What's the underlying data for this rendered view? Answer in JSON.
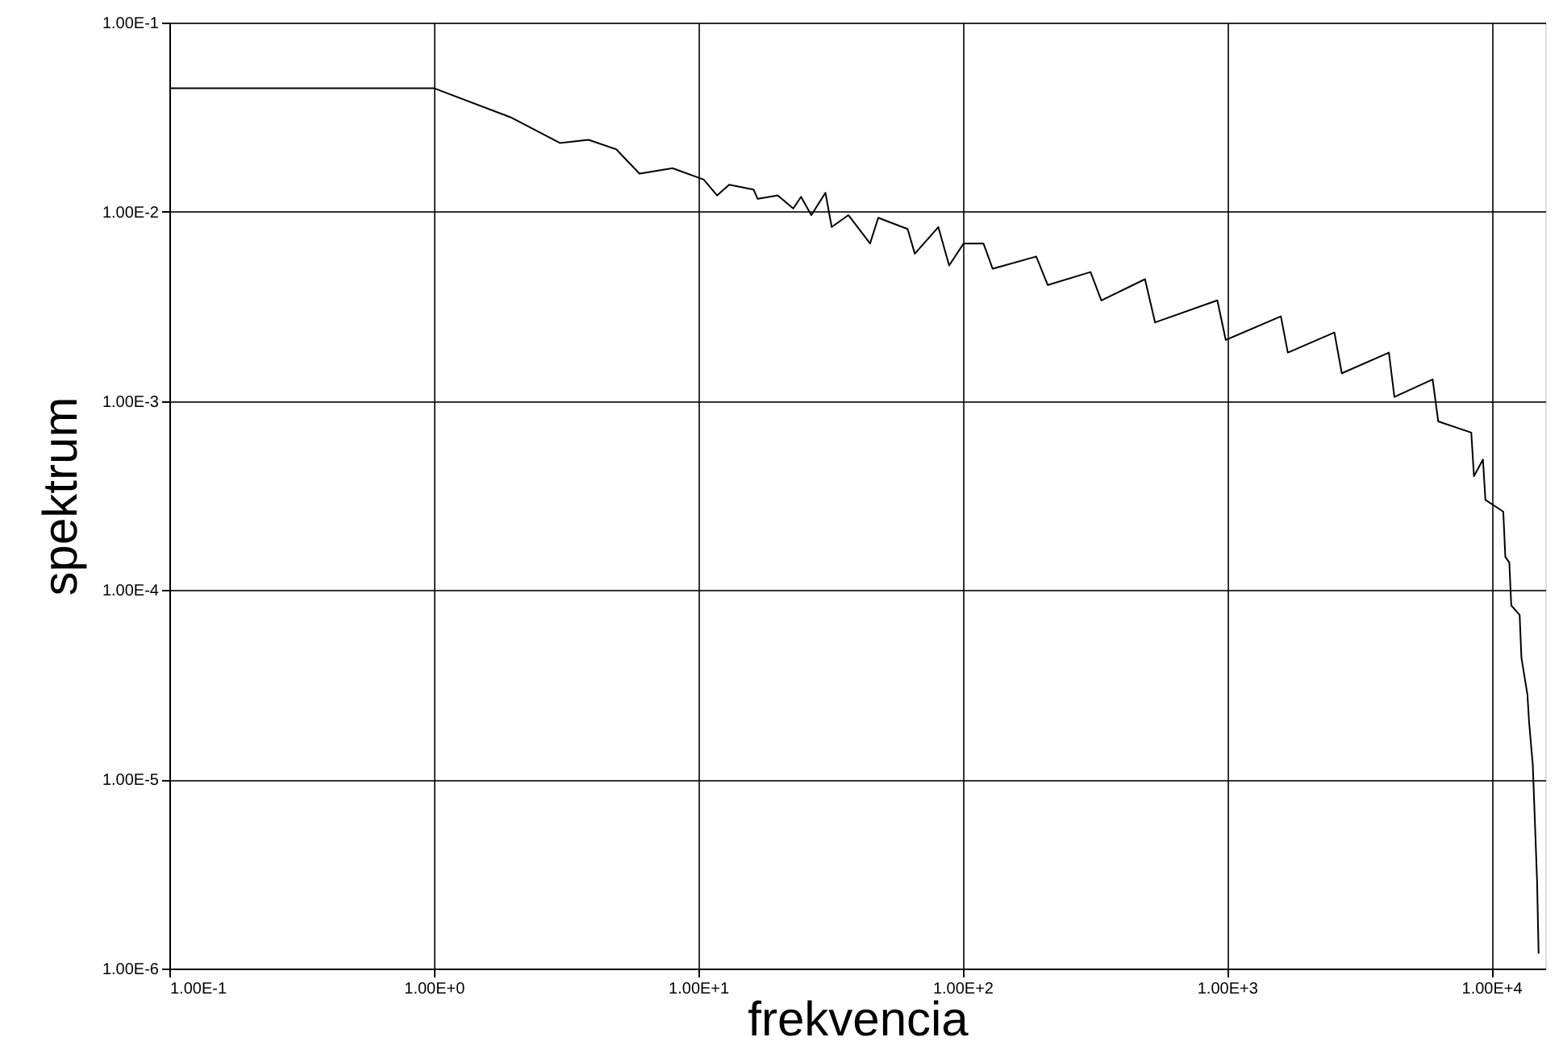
{
  "chart_data": {
    "type": "line",
    "xlabel": "frekvencia",
    "ylabel": "spektrum",
    "log": "xy",
    "grid": true,
    "marker": "none",
    "line_style": "solid",
    "xlim": [
      0.1,
      16000
    ],
    "ylim": [
      1e-06,
      0.1
    ],
    "xticks": [
      {
        "value": 0.1,
        "label": "1.00E-1"
      },
      {
        "value": 1,
        "label": "1.00E+0"
      },
      {
        "value": 10,
        "label": "1.00E+1"
      },
      {
        "value": 100,
        "label": "1.00E+2"
      },
      {
        "value": 1000,
        "label": "1.00E+3"
      },
      {
        "value": 10000,
        "label": "1.00E+4"
      }
    ],
    "yticks": [
      {
        "value": 1e-06,
        "label": "1.00E-6"
      },
      {
        "value": 1e-05,
        "label": "1.00E-5"
      },
      {
        "value": 0.0001,
        "label": "1.00E-4"
      },
      {
        "value": 0.001,
        "label": "1.00E-3"
      },
      {
        "value": 0.01,
        "label": "1.00E-2"
      },
      {
        "value": 0.1,
        "label": "1.00E-1"
      }
    ],
    "series": [
      {
        "color": "#000000",
        "x": [
          0.1,
          1,
          1.95,
          3.0,
          3.85,
          4.9,
          6.0,
          8.0,
          10.5,
          11.8,
          13.1,
          16.2,
          16.8,
          20,
          22.9,
          24.5,
          26.8,
          30.3,
          32,
          37,
          44.7,
          48,
          62,
          66,
          81,
          89,
          101,
          120,
          130,
          190,
          210,
          305,
          335,
          490,
          535,
          920,
          990,
          1600,
          1700,
          2550,
          2720,
          4100,
          4300,
          6000,
          6300,
          8400,
          8600,
          9300,
          9500,
          11100,
          11300,
          11700,
          11900,
          12800,
          13000,
          13700,
          13900,
          14350,
          14450,
          14900,
          15100
        ],
        "values": [
          0.045,
          0.045,
          0.0316,
          0.0231,
          0.024,
          0.0214,
          0.0159,
          0.017,
          0.0148,
          0.0122,
          0.0139,
          0.0131,
          0.0117,
          0.0122,
          0.0104,
          0.012,
          0.0096,
          0.0126,
          0.0083,
          0.0096,
          0.0068,
          0.0093,
          0.0081,
          0.006,
          0.0083,
          0.0052,
          0.0068,
          0.0068,
          0.005,
          0.0058,
          0.0041,
          0.0048,
          0.0034,
          0.0044,
          0.0026,
          0.0034,
          0.0021,
          0.0028,
          0.0018,
          0.0023,
          0.0014,
          0.0018,
          0.00105,
          0.0013,
          0.00078,
          0.00068,
          0.0004,
          0.00049,
          0.0003,
          0.00026,
          0.00015,
          0.00014,
          8.3e-05,
          7.4e-05,
          4.4e-05,
          2.8e-05,
          2e-05,
          1.2e-05,
          9.3e-06,
          2.9e-06,
          1.2e-06
        ]
      }
    ]
  }
}
